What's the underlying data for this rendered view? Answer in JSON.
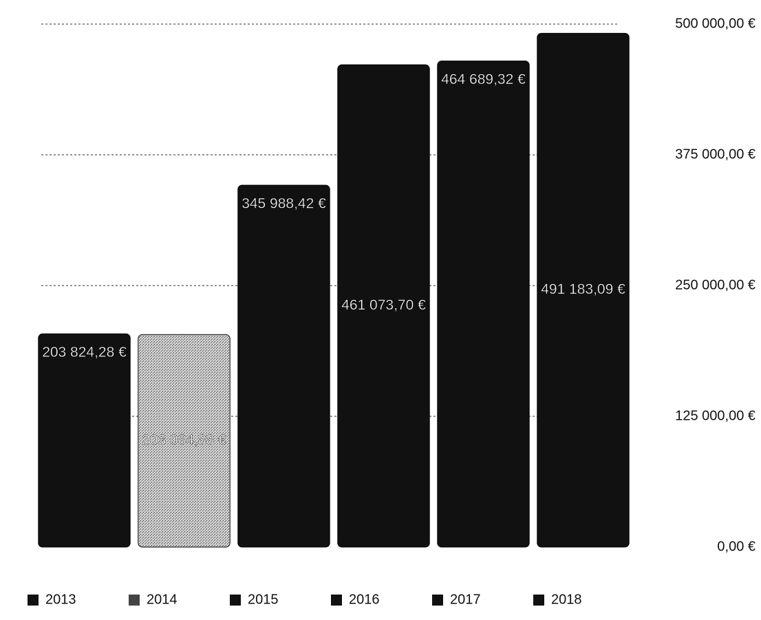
{
  "chart_data": {
    "type": "bar",
    "categories": [
      "2013",
      "2014",
      "2015",
      "2016",
      "2017",
      "2018"
    ],
    "values": [
      203824.28,
      203084.88,
      345988.42,
      461073.7,
      464689.32,
      491183.09
    ],
    "value_labels": [
      "203 824,28 €",
      "203 084,88 €",
      "345 988,42 €",
      "461 073,70 €",
      "464 689,32 €",
      "491 183,09 €"
    ],
    "colors": [
      "#111111",
      "#9a9a9a",
      "#111111",
      "#111111",
      "#111111",
      "#111111"
    ],
    "ylim": [
      0,
      500000
    ],
    "yticks": [
      {
        "value": 0,
        "label": "0,00 €"
      },
      {
        "value": 125000,
        "label": "125 000,00 €"
      },
      {
        "value": 250000,
        "label": "250 000,00 €"
      },
      {
        "value": 375000,
        "label": "375 000,00 €"
      },
      {
        "value": 500000,
        "label": "500 000,00 €"
      }
    ],
    "grid": true,
    "legend": "bottom"
  }
}
